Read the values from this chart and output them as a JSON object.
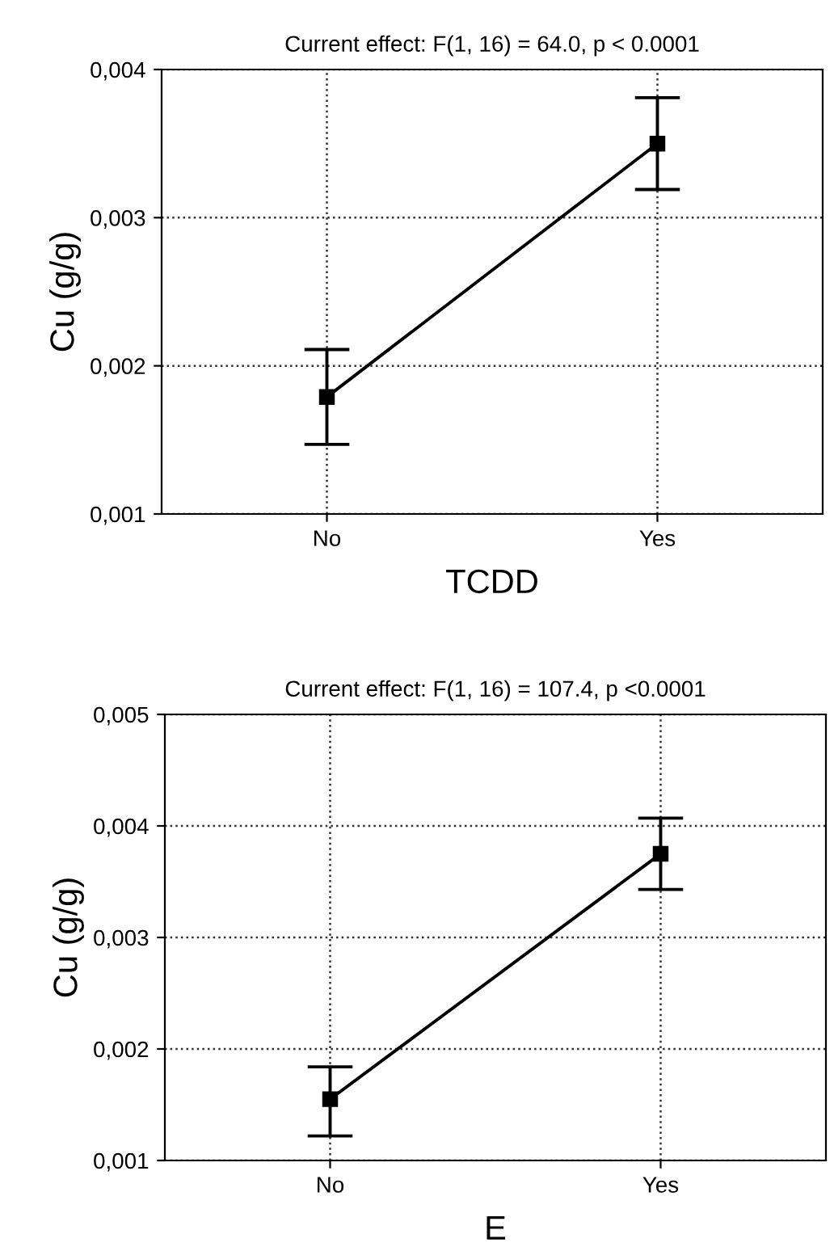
{
  "chart_data": [
    {
      "type": "line",
      "title": "Current effect: F(1, 16) = 64.0, p < 0.0001",
      "xlabel": "TCDD",
      "ylabel": "Cu (g/g)",
      "categories": [
        "No",
        "Yes"
      ],
      "series": [
        {
          "color": "#000000",
          "values": [
            0.00179,
            0.0035
          ],
          "errors": [
            [
              0.00147,
              0.00211
            ],
            [
              0.00319,
              0.00381
            ]
          ]
        }
      ],
      "ylim": [
        0.001,
        0.004
      ],
      "yticks": [
        {
          "value": 0.001,
          "label": "0,001"
        },
        {
          "value": 0.002,
          "label": "0,002"
        },
        {
          "value": 0.003,
          "label": "0,003"
        },
        {
          "value": 0.004,
          "label": "0,004"
        }
      ],
      "grid": true,
      "marker": "square",
      "line_style": "solid",
      "legend": false
    },
    {
      "type": "line",
      "title": "Current effect: F(1, 16) = 107.4, p <0.0001",
      "xlabel": "E",
      "ylabel": "Cu (g/g)",
      "categories": [
        "No",
        "Yes"
      ],
      "series": [
        {
          "color": "#000000",
          "values": [
            0.00155,
            0.00375
          ],
          "errors": [
            [
              0.00122,
              0.00184
            ],
            [
              0.00343,
              0.00407
            ]
          ]
        }
      ],
      "ylim": [
        0.001,
        0.005
      ],
      "yticks": [
        {
          "value": 0.001,
          "label": "0,001"
        },
        {
          "value": 0.002,
          "label": "0,002"
        },
        {
          "value": 0.003,
          "label": "0,003"
        },
        {
          "value": 0.004,
          "label": "0,004"
        },
        {
          "value": 0.005,
          "label": "0,005"
        }
      ],
      "grid": true,
      "marker": "square",
      "line_style": "solid",
      "legend": false
    }
  ]
}
